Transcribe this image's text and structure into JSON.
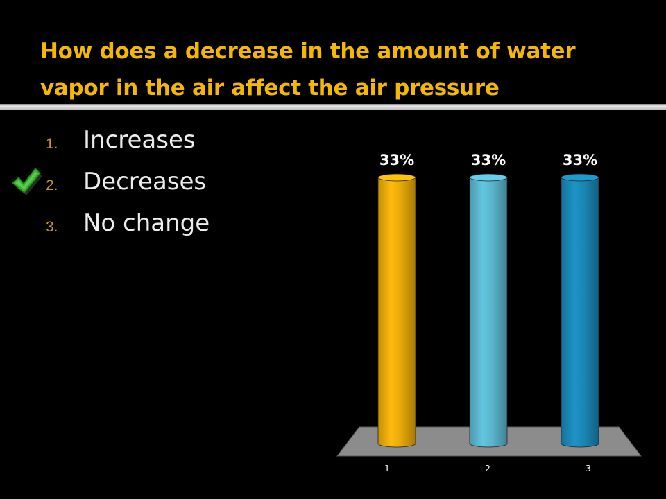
{
  "slide": {
    "title_line1": "How does a decrease in the amount of water",
    "title_line2": "vapor in the air affect the air pressure"
  },
  "answers": [
    {
      "number": "1.",
      "label": "Increases",
      "correct": false
    },
    {
      "number": "2.",
      "label": "Decreases",
      "correct": true
    },
    {
      "number": "3.",
      "label": "No change",
      "correct": false
    }
  ],
  "icons": {
    "correct_marker": "checkmark-icon"
  },
  "colors": {
    "title": "#f5b800",
    "answer_number": "#c99a19",
    "answer_text": "#ececec",
    "floor": "#8c8c8c",
    "check": "#37b82c"
  },
  "chart_data": {
    "type": "bar",
    "style": "3d-cylinder",
    "categories": [
      "1",
      "2",
      "3"
    ],
    "values": [
      33,
      33,
      33
    ],
    "data_labels": [
      "33%",
      "33%",
      "33%"
    ],
    "bar_colors": [
      "#e8a90a",
      "#5ab4cc",
      "#1a86b4"
    ],
    "ylim": [
      0,
      33
    ],
    "grid": false,
    "legend": "none"
  }
}
